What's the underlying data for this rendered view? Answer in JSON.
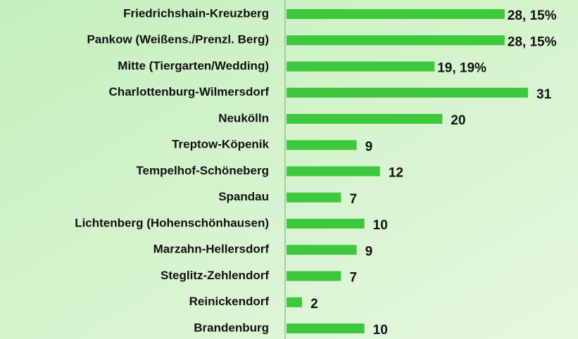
{
  "chart_data": {
    "type": "bar",
    "orientation": "horizontal",
    "categories": [
      "Friedrichshain-Kreuzberg",
      "Pankow (Weißens./Prenzl. Berg)",
      "Mitte (Tiergarten/Wedding)",
      "Charlottenburg-Wilmersdorf",
      "Neukölln",
      "Treptow-Köpenik",
      "Tempelhof-Schöneberg",
      "Spandau",
      "Lichtenberg (Hohenschönhausen)",
      "Marzahn-Hellersdorf",
      "Steglitz-Zehlendorf",
      "Reinickendorf",
      "Brandenburg"
    ],
    "values": [
      28,
      28,
      19,
      31,
      20,
      9,
      12,
      7,
      10,
      9,
      7,
      2,
      10
    ],
    "value_labels": [
      "28, 15%",
      "28, 15%",
      "19, 19%",
      "31",
      "20",
      "9",
      "12",
      "7",
      "10",
      "9",
      "7",
      "2",
      "10"
    ],
    "color": "#3ec83e"
  }
}
